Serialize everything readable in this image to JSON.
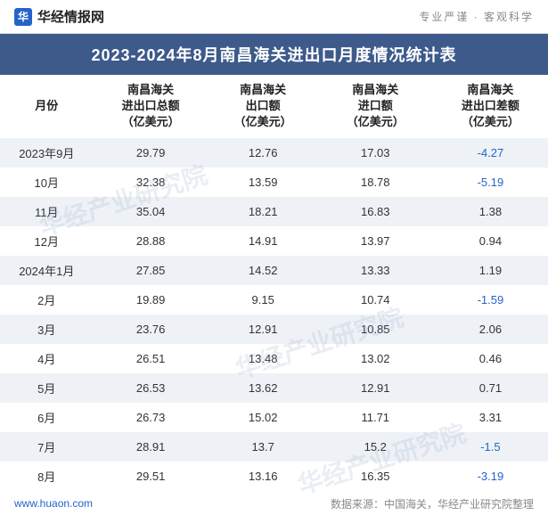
{
  "header": {
    "logo_glyph": "华",
    "logo_text": "华经情报网",
    "slogan": "专业严谨 · 客观科学"
  },
  "title": "2023-2024年8月南昌海关进出口月度情况统计表",
  "columns": {
    "month": "月份",
    "total_l1": "南昌海关",
    "total_l2": "进出口总额",
    "total_l3": "（亿美元）",
    "export_l1": "南昌海关",
    "export_l2": "出口额",
    "export_l3": "（亿美元）",
    "import_l1": "南昌海关",
    "import_l2": "进口额",
    "import_l3": "（亿美元）",
    "diff_l1": "南昌海关",
    "diff_l2": "进出口差额",
    "diff_l3": "（亿美元）"
  },
  "rows": [
    {
      "month": "2023年9月",
      "total": "29.79",
      "export": "12.76",
      "import": "17.03",
      "diff": "-4.27",
      "neg": true
    },
    {
      "month": "10月",
      "total": "32.38",
      "export": "13.59",
      "import": "18.78",
      "diff": "-5.19",
      "neg": true
    },
    {
      "month": "11月",
      "total": "35.04",
      "export": "18.21",
      "import": "16.83",
      "diff": "1.38",
      "neg": false
    },
    {
      "month": "12月",
      "total": "28.88",
      "export": "14.91",
      "import": "13.97",
      "diff": "0.94",
      "neg": false
    },
    {
      "month": "2024年1月",
      "total": "27.85",
      "export": "14.52",
      "import": "13.33",
      "diff": "1.19",
      "neg": false
    },
    {
      "month": "2月",
      "total": "19.89",
      "export": "9.15",
      "import": "10.74",
      "diff": "-1.59",
      "neg": true
    },
    {
      "month": "3月",
      "total": "23.76",
      "export": "12.91",
      "import": "10.85",
      "diff": "2.06",
      "neg": false
    },
    {
      "month": "4月",
      "total": "26.51",
      "export": "13.48",
      "import": "13.02",
      "diff": "0.46",
      "neg": false
    },
    {
      "month": "5月",
      "total": "26.53",
      "export": "13.62",
      "import": "12.91",
      "diff": "0.71",
      "neg": false
    },
    {
      "month": "6月",
      "total": "26.73",
      "export": "15.02",
      "import": "11.71",
      "diff": "3.31",
      "neg": false
    },
    {
      "month": "7月",
      "total": "28.91",
      "export": "13.7",
      "import": "15.2",
      "diff": "-1.5",
      "neg": true
    },
    {
      "month": "8月",
      "total": "29.51",
      "export": "13.16",
      "import": "16.35",
      "diff": "-3.19",
      "neg": true
    }
  ],
  "footer": {
    "site": "www.huaon.com",
    "source": "数据来源：中国海关，华经产业研究院整理"
  },
  "watermark": "华经产业研究院",
  "styling": {
    "title_bg": "#3d5a8a",
    "title_color": "#ffffff",
    "row_odd_bg": "#eef2f7",
    "row_even_bg": "#ffffff",
    "neg_color": "#2563c9",
    "text_color": "#333333",
    "header_text_color": "#222222",
    "footer_left_color": "#2563c9",
    "footer_right_color": "#888888",
    "title_fontsize": 18,
    "header_fontsize": 13,
    "cell_fontsize": 13,
    "footer_fontsize": 12
  }
}
